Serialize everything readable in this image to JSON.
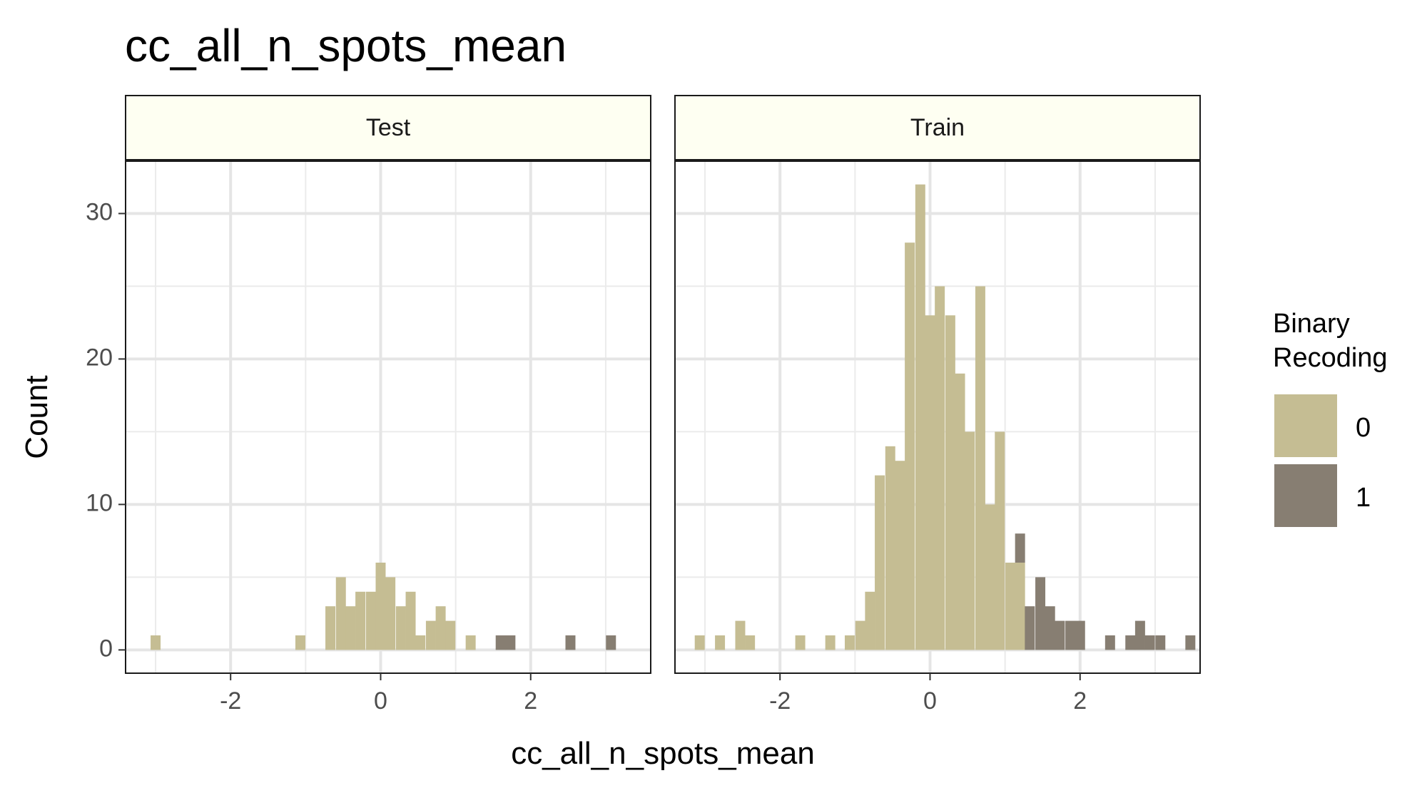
{
  "title": "cc_all_n_spots_mean",
  "chart_data": {
    "type": "histogram",
    "title": "cc_all_n_spots_mean",
    "xlabel": "cc_all_n_spots_mean",
    "ylabel": "Count",
    "xlim": [
      -3.4,
      3.6
    ],
    "ylim": [
      -1.6,
      33.6
    ],
    "x_ticks": [
      -2,
      0,
      2
    ],
    "x_tick_labels": [
      "-2",
      "0",
      "2"
    ],
    "y_ticks": [
      0,
      10,
      20,
      30
    ],
    "y_tick_labels": [
      "0",
      "10",
      "20",
      "30"
    ],
    "bin_width": 0.133,
    "legend": {
      "title_lines": [
        "Binary",
        "Recoding"
      ],
      "position": "right",
      "entries": [
        {
          "label": "0",
          "color": "#c5bd93"
        },
        {
          "label": "1",
          "color": "#877e72"
        }
      ]
    },
    "panels": [
      {
        "name": "Test",
        "bars": [
          {
            "x": -3.0,
            "count": 1,
            "group": "0"
          },
          {
            "x": -1.07,
            "count": 1,
            "group": "0"
          },
          {
            "x": -0.67,
            "count": 3,
            "group": "0"
          },
          {
            "x": -0.53,
            "count": 5,
            "group": "0"
          },
          {
            "x": -0.4,
            "count": 3,
            "group": "0"
          },
          {
            "x": -0.27,
            "count": 4,
            "group": "0"
          },
          {
            "x": -0.13,
            "count": 4,
            "group": "0"
          },
          {
            "x": 0.0,
            "count": 6,
            "group": "0"
          },
          {
            "x": 0.13,
            "count": 5,
            "group": "0"
          },
          {
            "x": 0.27,
            "count": 3,
            "group": "0"
          },
          {
            "x": 0.4,
            "count": 4,
            "group": "0"
          },
          {
            "x": 0.53,
            "count": 1,
            "group": "0"
          },
          {
            "x": 0.67,
            "count": 2,
            "group": "0"
          },
          {
            "x": 0.8,
            "count": 3,
            "group": "0"
          },
          {
            "x": 0.93,
            "count": 2,
            "group": "0"
          },
          {
            "x": 1.2,
            "count": 1,
            "group": "0"
          },
          {
            "x": 1.6,
            "count": 1,
            "group": "1"
          },
          {
            "x": 1.73,
            "count": 1,
            "group": "1"
          },
          {
            "x": 2.53,
            "count": 1,
            "group": "1"
          },
          {
            "x": 3.07,
            "count": 1,
            "group": "1"
          }
        ]
      },
      {
        "name": "Train",
        "bars": [
          {
            "x": -3.07,
            "count": 1,
            "group": "0"
          },
          {
            "x": -2.8,
            "count": 1,
            "group": "0"
          },
          {
            "x": -2.53,
            "count": 2,
            "group": "0"
          },
          {
            "x": -2.4,
            "count": 1,
            "group": "0"
          },
          {
            "x": -1.73,
            "count": 1,
            "group": "0"
          },
          {
            "x": -1.33,
            "count": 1,
            "group": "0"
          },
          {
            "x": -1.07,
            "count": 1,
            "group": "0"
          },
          {
            "x": -0.93,
            "count": 2,
            "group": "0"
          },
          {
            "x": -0.8,
            "count": 4,
            "group": "0"
          },
          {
            "x": -0.67,
            "count": 12,
            "group": "0"
          },
          {
            "x": -0.53,
            "count": 14,
            "group": "0"
          },
          {
            "x": -0.4,
            "count": 13,
            "group": "0"
          },
          {
            "x": -0.27,
            "count": 28,
            "group": "0"
          },
          {
            "x": -0.13,
            "count": 32,
            "group": "0"
          },
          {
            "x": 0.0,
            "count": 23,
            "group": "0"
          },
          {
            "x": 0.13,
            "count": 25,
            "group": "0"
          },
          {
            "x": 0.27,
            "count": 23,
            "group": "0"
          },
          {
            "x": 0.4,
            "count": 19,
            "group": "0"
          },
          {
            "x": 0.53,
            "count": 15,
            "group": "0"
          },
          {
            "x": 0.67,
            "count": 25,
            "group": "0"
          },
          {
            "x": 0.8,
            "count": 10,
            "group": "0"
          },
          {
            "x": 0.93,
            "count": 15,
            "group": "0"
          },
          {
            "x": 1.07,
            "count": 6,
            "group": "0"
          },
          {
            "x": 1.2,
            "count": 6,
            "group": "0"
          },
          {
            "x": 1.2,
            "count": 2,
            "group": "1"
          },
          {
            "x": 1.33,
            "count": 3,
            "group": "1"
          },
          {
            "x": 1.47,
            "count": 5,
            "group": "1"
          },
          {
            "x": 1.6,
            "count": 3,
            "group": "1"
          },
          {
            "x": 1.73,
            "count": 2,
            "group": "1"
          },
          {
            "x": 1.87,
            "count": 2,
            "group": "1"
          },
          {
            "x": 2.0,
            "count": 2,
            "group": "1"
          },
          {
            "x": 2.4,
            "count": 1,
            "group": "1"
          },
          {
            "x": 2.67,
            "count": 1,
            "group": "1"
          },
          {
            "x": 2.8,
            "count": 2,
            "group": "1"
          },
          {
            "x": 2.93,
            "count": 1,
            "group": "1"
          },
          {
            "x": 3.07,
            "count": 1,
            "group": "1"
          },
          {
            "x": 3.47,
            "count": 1,
            "group": "1"
          }
        ]
      }
    ]
  }
}
